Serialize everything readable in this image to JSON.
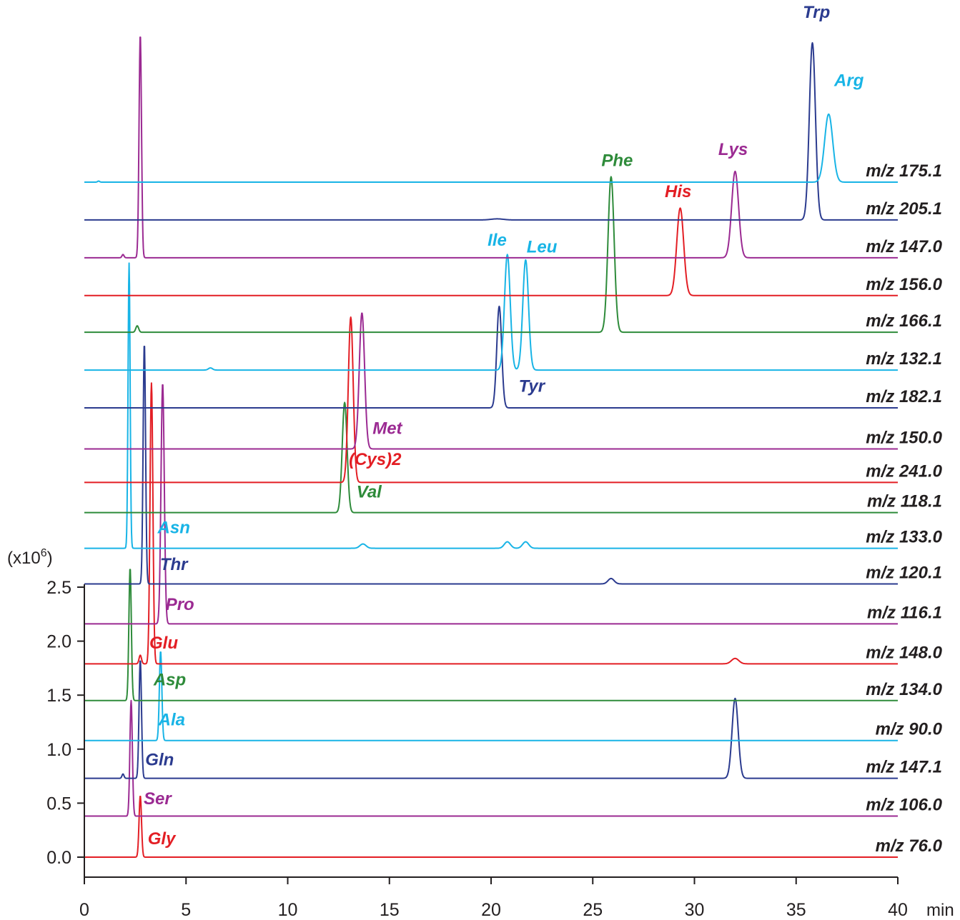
{
  "chart_data": {
    "type": "line",
    "y_unit_label": "(x10",
    "y_unit_exp": "6",
    "y_unit_close": ")",
    "x_unit_label": "min",
    "xlim": [
      0,
      40
    ],
    "ylim": [
      0,
      2.5
    ],
    "x_ticks": [
      "0",
      "5",
      "10",
      "15",
      "20",
      "25",
      "30",
      "35",
      "40"
    ],
    "y_ticks": [
      "0.0",
      "0.5",
      "1.0",
      "1.5",
      "2.0",
      "2.5"
    ],
    "grid": false,
    "colors": {
      "red": "#e31e24",
      "purple": "#9b2a92",
      "darkblue": "#2b3b8f",
      "cyan": "#18b4e6",
      "green": "#2e8b3a",
      "axis": "#231f20"
    },
    "traces": [
      {
        "mz": "m/z 76.0",
        "color": "red",
        "baseline": 0.0,
        "start": 0.0,
        "peaks": [
          {
            "x": 2.75,
            "h": 0.57,
            "w": 0.06
          }
        ]
      },
      {
        "mz": "m/z 106.0",
        "color": "purple",
        "baseline": 0.38,
        "start": 0.0,
        "peaks": [
          {
            "x": 2.3,
            "h": 1.07,
            "w": 0.06
          }
        ]
      },
      {
        "mz": "m/z 147.1",
        "color": "darkblue",
        "baseline": 0.73,
        "start": 0.0,
        "peaks": [
          {
            "x": 1.9,
            "h": 0.04,
            "w": 0.05
          },
          {
            "x": 2.75,
            "h": 1.1,
            "w": 0.06
          },
          {
            "x": 32.0,
            "h": 0.74,
            "w": 0.15
          }
        ]
      },
      {
        "mz": "m/z 90.0",
        "color": "cyan",
        "baseline": 1.08,
        "start": 0.0,
        "peaks": [
          {
            "x": 3.75,
            "h": 0.83,
            "w": 0.06
          }
        ]
      },
      {
        "mz": "m/z 134.0",
        "color": "green",
        "baseline": 1.45,
        "start": 0.0,
        "peaks": [
          {
            "x": 2.25,
            "h": 1.23,
            "w": 0.06
          }
        ]
      },
      {
        "mz": "m/z 148.0",
        "color": "red",
        "baseline": 1.79,
        "start": 0.0,
        "peaks": [
          {
            "x": 2.75,
            "h": 0.08,
            "w": 0.06
          },
          {
            "x": 3.3,
            "h": 2.6,
            "w": 0.07
          },
          {
            "x": 32.0,
            "h": 0.05,
            "w": 0.18
          }
        ]
      },
      {
        "mz": "m/z 116.1",
        "color": "purple",
        "baseline": 2.16,
        "start": 0.0,
        "peaks": [
          {
            "x": 3.85,
            "h": 2.23,
            "w": 0.08
          }
        ]
      },
      {
        "mz": "m/z 120.1",
        "color": "darkblue",
        "baseline": 2.53,
        "start": 0.0,
        "peaks": [
          {
            "x": 2.95,
            "h": 2.23,
            "w": 0.06
          },
          {
            "x": 25.9,
            "h": 0.05,
            "w": 0.15
          }
        ]
      },
      {
        "mz": "m/z 133.0",
        "color": "cyan",
        "baseline": 2.86,
        "start": 0.0,
        "peaks": [
          {
            "x": 2.2,
            "h": 2.64,
            "w": 0.05
          },
          {
            "x": 13.7,
            "h": 0.04,
            "w": 0.15
          },
          {
            "x": 20.8,
            "h": 0.06,
            "w": 0.15
          },
          {
            "x": 21.7,
            "h": 0.06,
            "w": 0.15
          }
        ]
      },
      {
        "mz": "m/z 118.1",
        "color": "green",
        "baseline": 3.19,
        "start": 0.0,
        "peaks": [
          {
            "x": 12.8,
            "h": 1.02,
            "w": 0.12
          }
        ]
      },
      {
        "mz": "m/z 241.0",
        "color": "red",
        "baseline": 3.47,
        "start": 0.0,
        "peaks": [
          {
            "x": 13.1,
            "h": 1.53,
            "w": 0.12
          }
        ]
      },
      {
        "mz": "m/z 150.0",
        "color": "purple",
        "baseline": 3.78,
        "start": 0.0,
        "peaks": [
          {
            "x": 13.65,
            "h": 1.26,
            "w": 0.13
          }
        ]
      },
      {
        "mz": "m/z 182.1",
        "color": "darkblue",
        "baseline": 4.16,
        "start": 0.0,
        "peaks": [
          {
            "x": 20.4,
            "h": 0.94,
            "w": 0.12
          }
        ]
      },
      {
        "mz": "m/z 132.1",
        "color": "cyan",
        "baseline": 4.51,
        "start": 0.0,
        "peaks": [
          {
            "x": 6.2,
            "h": 0.02,
            "w": 0.1
          },
          {
            "x": 20.8,
            "h": 1.07,
            "w": 0.14
          },
          {
            "x": 21.7,
            "h": 1.02,
            "w": 0.14
          }
        ]
      },
      {
        "mz": "m/z 166.1",
        "color": "green",
        "baseline": 4.86,
        "start": 0.0,
        "peaks": [
          {
            "x": 2.6,
            "h": 0.06,
            "w": 0.07
          },
          {
            "x": 25.9,
            "h": 1.44,
            "w": 0.15
          }
        ]
      },
      {
        "mz": "m/z 156.0",
        "color": "red",
        "baseline": 5.2,
        "start": 0.0,
        "peaks": [
          {
            "x": 29.3,
            "h": 0.81,
            "w": 0.17
          }
        ]
      },
      {
        "mz": "m/z 147.0",
        "color": "purple",
        "baseline": 5.55,
        "start": 0.0,
        "peaks": [
          {
            "x": 1.9,
            "h": 0.03,
            "w": 0.05
          },
          {
            "x": 2.75,
            "h": 2.07,
            "w": 0.06
          },
          {
            "x": 32.0,
            "h": 0.8,
            "w": 0.17
          }
        ]
      },
      {
        "mz": "m/z 205.1",
        "color": "darkblue",
        "baseline": 5.9,
        "start": 0.0,
        "peaks": [
          {
            "x": 20.3,
            "h": 0.01,
            "w": 0.3
          },
          {
            "x": 35.8,
            "h": 1.64,
            "w": 0.15
          }
        ]
      },
      {
        "mz": "m/z 175.1",
        "color": "cyan",
        "baseline": 6.25,
        "start": 0.0,
        "peaks": [
          {
            "x": 0.7,
            "h": 0.01,
            "w": 0.05
          },
          {
            "x": 36.6,
            "h": 0.63,
            "w": 0.2
          }
        ]
      }
    ],
    "peak_labels": [
      {
        "text": "Gly",
        "color": "red",
        "x": 3.8,
        "y": 0.12
      },
      {
        "text": "Ser",
        "color": "purple",
        "x": 3.6,
        "y": 0.49
      },
      {
        "text": "Gln",
        "color": "darkblue",
        "x": 3.7,
        "y": 0.85
      },
      {
        "text": "Ala",
        "color": "cyan",
        "x": 4.3,
        "y": 1.22
      },
      {
        "text": "Asp",
        "color": "green",
        "x": 4.2,
        "y": 1.59
      },
      {
        "text": "Glu",
        "color": "red",
        "x": 3.9,
        "y": 1.93
      },
      {
        "text": "Pro",
        "color": "purple",
        "x": 4.7,
        "y": 2.29
      },
      {
        "text": "Thr",
        "color": "darkblue",
        "x": 4.4,
        "y": 2.66
      },
      {
        "text": "Asn",
        "color": "cyan",
        "x": 4.4,
        "y": 3.0
      },
      {
        "text": "Val",
        "color": "green",
        "x": 14.0,
        "y": 3.33
      },
      {
        "text": "(Cys)2",
        "color": "red",
        "x": 14.3,
        "y": 3.63
      },
      {
        "text": "Met",
        "color": "purple",
        "x": 14.9,
        "y": 3.92
      },
      {
        "text": "Tyr",
        "color": "darkblue",
        "x": 22.0,
        "y": 4.31
      },
      {
        "text": "Ile",
        "color": "cyan",
        "x": 20.3,
        "y": 5.66
      },
      {
        "text": "Leu",
        "color": "cyan",
        "x": 22.5,
        "y": 5.6
      },
      {
        "text": "Phe",
        "color": "green",
        "x": 26.2,
        "y": 6.4
      },
      {
        "text": "His",
        "color": "red",
        "x": 29.2,
        "y": 6.11
      },
      {
        "text": "Lys",
        "color": "purple",
        "x": 31.9,
        "y": 6.5
      },
      {
        "text": "Trp",
        "color": "darkblue",
        "x": 36.0,
        "y": 7.77
      },
      {
        "text": "Arg",
        "color": "cyan",
        "x": 37.6,
        "y": 7.14
      }
    ]
  }
}
